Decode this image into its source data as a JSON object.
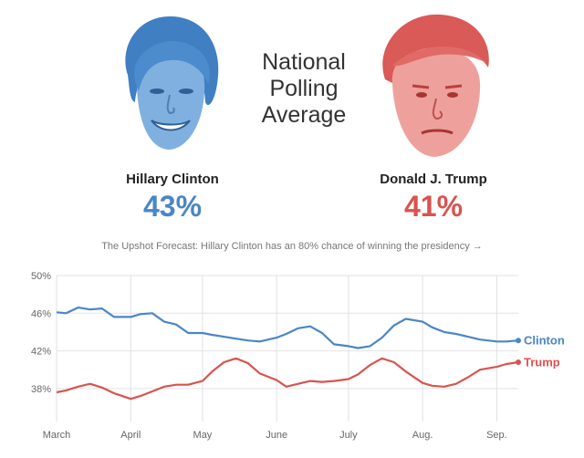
{
  "header": {
    "title_lines": [
      "National",
      "Polling",
      "Average"
    ]
  },
  "candidates": [
    {
      "name": "Hillary Clinton",
      "percent": "43%",
      "color": "#4a86c6",
      "face": "clinton-face"
    },
    {
      "name": "Donald J. Trump",
      "percent": "41%",
      "color": "#d9534f",
      "face": "trump-face"
    }
  ],
  "forecast": {
    "text": "The Upshot Forecast: Hillary Clinton has an 80% chance of winning the presidency →"
  },
  "chart_data": {
    "type": "line",
    "title": "National Polling Average",
    "xlabel": "",
    "ylabel": "",
    "ylim": [
      34.5,
      50
    ],
    "grid": true,
    "x_ticks": [
      "March",
      "April",
      "May",
      "June",
      "July",
      "Aug.",
      "Sep."
    ],
    "y_ticks": [
      "50%",
      "46%",
      "42%",
      "38%"
    ],
    "y_tick_values": [
      50,
      46,
      42,
      38
    ],
    "x": [
      "Mar 1",
      "Mar 5",
      "Mar 10",
      "Mar 15",
      "Mar 20",
      "Mar 25",
      "Apr 1",
      "Apr 5",
      "Apr 10",
      "Apr 15",
      "Apr 20",
      "Apr 25",
      "May 1",
      "May 5",
      "May 10",
      "May 15",
      "May 20",
      "May 25",
      "Jun 1",
      "Jun 5",
      "Jun 10",
      "Jun 15",
      "Jun 20",
      "Jun 25",
      "Jul 1",
      "Jul 5",
      "Jul 10",
      "Jul 15",
      "Jul 20",
      "Jul 25",
      "Aug 1",
      "Aug 5",
      "Aug 10",
      "Aug 15",
      "Aug 20",
      "Aug 25",
      "Sep 1",
      "Sep 5",
      "Sep 10"
    ],
    "x_values": [
      0,
      4,
      9,
      14,
      19,
      24,
      31,
      35,
      40,
      45,
      50,
      55,
      61,
      65,
      70,
      75,
      80,
      85,
      92,
      96,
      101,
      106,
      111,
      116,
      122,
      126,
      131,
      136,
      141,
      146,
      153,
      157,
      162,
      167,
      172,
      177,
      184,
      188,
      193
    ],
    "series": [
      {
        "name": "Clinton",
        "color": "#4a86c6",
        "values": [
          46.1,
          46.0,
          46.6,
          46.4,
          46.5,
          45.6,
          45.6,
          45.9,
          46.0,
          45.1,
          44.8,
          43.9,
          43.9,
          43.7,
          43.5,
          43.3,
          43.1,
          43.0,
          43.4,
          43.8,
          44.4,
          44.6,
          43.9,
          42.7,
          42.5,
          42.3,
          42.5,
          43.4,
          44.7,
          45.4,
          45.1,
          44.5,
          44.0,
          43.8,
          43.5,
          43.2,
          43.0,
          43.0,
          43.1
        ]
      },
      {
        "name": "Trump",
        "color": "#d9534f",
        "values": [
          37.6,
          37.8,
          38.2,
          38.5,
          38.1,
          37.5,
          36.9,
          37.2,
          37.7,
          38.2,
          38.4,
          38.4,
          38.8,
          39.8,
          40.8,
          41.2,
          40.7,
          39.6,
          38.9,
          38.2,
          38.5,
          38.8,
          38.7,
          38.8,
          39.0,
          39.5,
          40.5,
          41.2,
          40.8,
          39.8,
          38.6,
          38.3,
          38.2,
          38.5,
          39.2,
          40.0,
          40.3,
          40.6,
          40.8
        ]
      }
    ]
  }
}
